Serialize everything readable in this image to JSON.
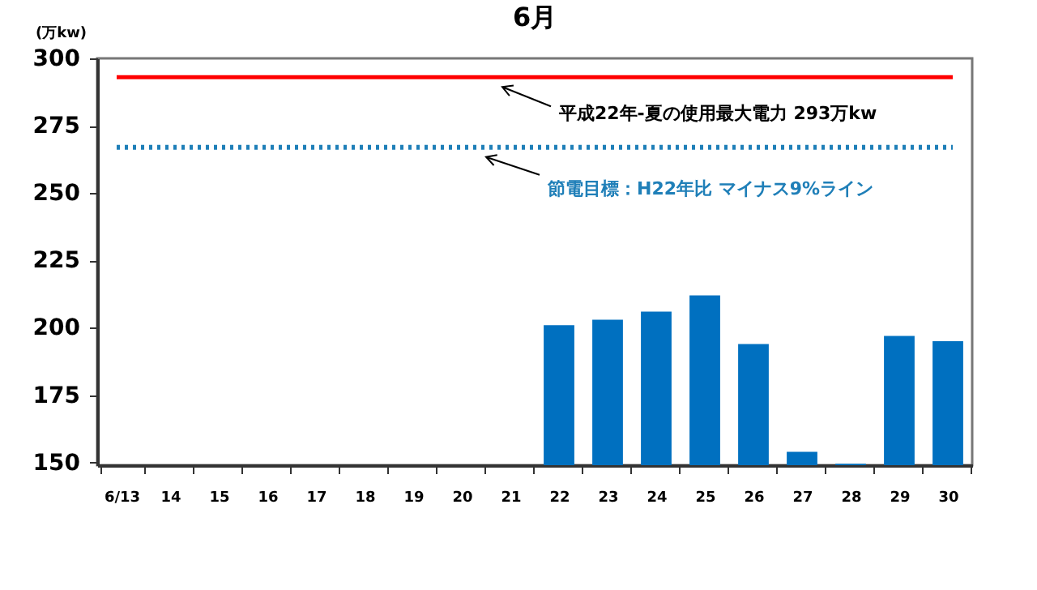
{
  "chart_data": {
    "type": "bar",
    "title": "6月",
    "ylabel": "(万kw)",
    "categories": [
      "6/13",
      "14",
      "15",
      "16",
      "17",
      "18",
      "19",
      "20",
      "21",
      "22",
      "23",
      "24",
      "25",
      "26",
      "27",
      "28",
      "29",
      "30"
    ],
    "values": [
      null,
      null,
      null,
      null,
      null,
      null,
      null,
      null,
      null,
      201,
      203,
      206,
      212,
      194,
      154,
      149.5,
      197,
      195
    ],
    "color": "#0070c0",
    "ylim": [
      149,
      300
    ],
    "yticks": [
      150,
      175,
      200,
      225,
      250,
      275,
      300
    ],
    "grid": false,
    "ref_lines": [
      {
        "axis": "y",
        "value": 293,
        "label": "平成22年-夏の使用最大電力  293万kw",
        "color": "#ff0000",
        "line_style": "solid"
      },
      {
        "axis": "y",
        "value": 267,
        "label": "節電目標：H22年比 マイナス9%ライン",
        "color": "#1f7fb8",
        "line_style": "dotted"
      }
    ]
  }
}
